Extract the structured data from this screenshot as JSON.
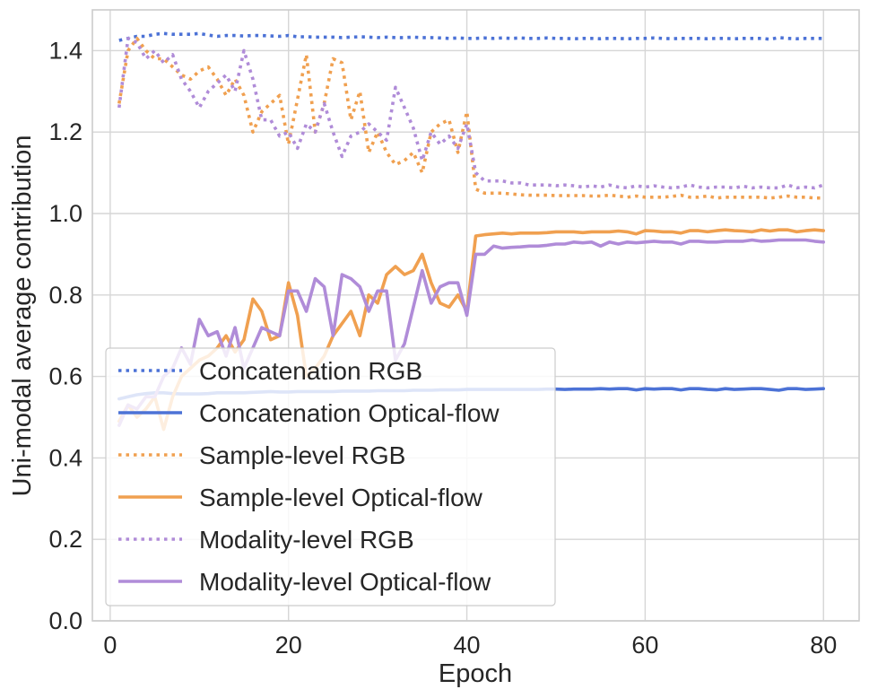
{
  "chart_data": {
    "type": "line",
    "title": "",
    "xlabel": "Epoch",
    "ylabel": "Uni-modal average contribution",
    "xlim": [
      -2,
      84
    ],
    "ylim": [
      0.0,
      1.5
    ],
    "xticks": [
      0,
      20,
      40,
      60,
      80
    ],
    "yticks": [
      0.0,
      0.2,
      0.4,
      0.6,
      0.8,
      1.0,
      1.2,
      1.4
    ],
    "xtick_labels": [
      "0",
      "20",
      "40",
      "60",
      "80"
    ],
    "ytick_labels": [
      "0.0",
      "0.2",
      "0.4",
      "0.6",
      "0.8",
      "1.0",
      "1.2",
      "1.4"
    ],
    "grid": true,
    "legend_position": "lower-left",
    "x": [
      1,
      2,
      3,
      4,
      5,
      6,
      7,
      8,
      9,
      10,
      11,
      12,
      13,
      14,
      15,
      16,
      17,
      18,
      19,
      20,
      21,
      22,
      23,
      24,
      25,
      26,
      27,
      28,
      29,
      30,
      31,
      32,
      33,
      34,
      35,
      36,
      37,
      38,
      39,
      40,
      41,
      42,
      43,
      44,
      45,
      46,
      47,
      48,
      49,
      50,
      51,
      52,
      53,
      54,
      55,
      56,
      57,
      58,
      59,
      60,
      61,
      62,
      63,
      64,
      65,
      66,
      67,
      68,
      69,
      70,
      71,
      72,
      73,
      74,
      75,
      76,
      77,
      78,
      79,
      80
    ],
    "series": [
      {
        "name": "Concatenation RGB",
        "color": "#4c72d6",
        "style": "dotted",
        "values": [
          1.425,
          1.43,
          1.435,
          1.435,
          1.44,
          1.442,
          1.44,
          1.44,
          1.44,
          1.442,
          1.438,
          1.435,
          1.437,
          1.437,
          1.436,
          1.437,
          1.437,
          1.436,
          1.435,
          1.437,
          1.434,
          1.434,
          1.433,
          1.433,
          1.433,
          1.432,
          1.433,
          1.434,
          1.433,
          1.432,
          1.433,
          1.432,
          1.432,
          1.433,
          1.432,
          1.432,
          1.431,
          1.43,
          1.431,
          1.43,
          1.43,
          1.431,
          1.43,
          1.431,
          1.43,
          1.431,
          1.43,
          1.43,
          1.431,
          1.43,
          1.43,
          1.429,
          1.43,
          1.43,
          1.429,
          1.43,
          1.43,
          1.429,
          1.43,
          1.43,
          1.431,
          1.43,
          1.429,
          1.43,
          1.43,
          1.43,
          1.429,
          1.43,
          1.43,
          1.429,
          1.43,
          1.43,
          1.43,
          1.428,
          1.432,
          1.43,
          1.429,
          1.43,
          1.43,
          1.43
        ]
      },
      {
        "name": "Concatenation Optical-flow",
        "color": "#4c72d6",
        "style": "solid",
        "values": [
          0.545,
          0.55,
          0.555,
          0.558,
          0.56,
          0.56,
          0.558,
          0.557,
          0.557,
          0.557,
          0.558,
          0.56,
          0.56,
          0.56,
          0.56,
          0.561,
          0.562,
          0.563,
          0.562,
          0.562,
          0.563,
          0.563,
          0.563,
          0.563,
          0.563,
          0.564,
          0.564,
          0.564,
          0.564,
          0.565,
          0.565,
          0.565,
          0.565,
          0.566,
          0.566,
          0.566,
          0.567,
          0.567,
          0.567,
          0.568,
          0.568,
          0.568,
          0.568,
          0.568,
          0.568,
          0.568,
          0.568,
          0.568,
          0.569,
          0.569,
          0.568,
          0.569,
          0.569,
          0.569,
          0.57,
          0.569,
          0.57,
          0.57,
          0.567,
          0.57,
          0.569,
          0.57,
          0.57,
          0.567,
          0.57,
          0.57,
          0.568,
          0.567,
          0.57,
          0.568,
          0.569,
          0.57,
          0.57,
          0.568,
          0.566,
          0.57,
          0.57,
          0.568,
          0.569,
          0.57
        ]
      },
      {
        "name": "Sample-level RGB",
        "color": "#f0a050",
        "style": "dotted",
        "values": [
          1.27,
          1.4,
          1.43,
          1.4,
          1.38,
          1.38,
          1.36,
          1.34,
          1.33,
          1.35,
          1.36,
          1.33,
          1.29,
          1.33,
          1.29,
          1.2,
          1.25,
          1.27,
          1.29,
          1.17,
          1.28,
          1.39,
          1.2,
          1.27,
          1.38,
          1.37,
          1.23,
          1.3,
          1.15,
          1.2,
          1.15,
          1.12,
          1.13,
          1.15,
          1.1,
          1.2,
          1.22,
          1.23,
          1.15,
          1.25,
          1.06,
          1.05,
          1.05,
          1.05,
          1.048,
          1.046,
          1.045,
          1.045,
          1.045,
          1.044,
          1.044,
          1.044,
          1.044,
          1.043,
          1.043,
          1.045,
          1.043,
          1.04,
          1.043,
          1.04,
          1.04,
          1.04,
          1.042,
          1.045,
          1.04,
          1.04,
          1.043,
          1.038,
          1.04,
          1.04,
          1.04,
          1.04,
          1.04,
          1.038,
          1.04,
          1.043,
          1.04,
          1.04,
          1.038,
          1.038
        ]
      },
      {
        "name": "Sample-level Optical-flow",
        "color": "#f0a050",
        "style": "solid",
        "values": [
          0.49,
          0.53,
          0.5,
          0.52,
          0.55,
          0.47,
          0.55,
          0.6,
          0.62,
          0.64,
          0.65,
          0.67,
          0.7,
          0.66,
          0.69,
          0.79,
          0.76,
          0.69,
          0.7,
          0.83,
          0.75,
          0.6,
          0.62,
          0.65,
          0.7,
          0.73,
          0.76,
          0.7,
          0.8,
          0.78,
          0.85,
          0.87,
          0.85,
          0.86,
          0.9,
          0.83,
          0.78,
          0.77,
          0.8,
          0.76,
          0.945,
          0.948,
          0.95,
          0.952,
          0.95,
          0.952,
          0.952,
          0.952,
          0.953,
          0.955,
          0.955,
          0.955,
          0.953,
          0.955,
          0.955,
          0.955,
          0.957,
          0.955,
          0.95,
          0.958,
          0.957,
          0.955,
          0.955,
          0.952,
          0.958,
          0.958,
          0.955,
          0.958,
          0.96,
          0.958,
          0.957,
          0.955,
          0.96,
          0.957,
          0.96,
          0.96,
          0.955,
          0.958,
          0.96,
          0.958
        ]
      },
      {
        "name": "Modality-level RGB",
        "color": "#b08cd8",
        "style": "dotted",
        "values": [
          1.26,
          1.43,
          1.42,
          1.38,
          1.4,
          1.37,
          1.39,
          1.33,
          1.3,
          1.26,
          1.3,
          1.32,
          1.34,
          1.3,
          1.4,
          1.33,
          1.23,
          1.23,
          1.19,
          1.2,
          1.16,
          1.22,
          1.2,
          1.27,
          1.2,
          1.14,
          1.19,
          1.2,
          1.22,
          1.2,
          1.18,
          1.31,
          1.26,
          1.21,
          1.13,
          1.2,
          1.17,
          1.19,
          1.16,
          1.22,
          1.1,
          1.08,
          1.08,
          1.08,
          1.075,
          1.075,
          1.07,
          1.07,
          1.07,
          1.068,
          1.07,
          1.068,
          1.065,
          1.068,
          1.065,
          1.07,
          1.065,
          1.063,
          1.068,
          1.065,
          1.068,
          1.065,
          1.063,
          1.065,
          1.07,
          1.065,
          1.063,
          1.065,
          1.065,
          1.063,
          1.067,
          1.063,
          1.065,
          1.063,
          1.063,
          1.07,
          1.063,
          1.065,
          1.063,
          1.07
        ]
      },
      {
        "name": "Modality-level Optical-flow",
        "color": "#b08cd8",
        "style": "solid",
        "values": [
          0.48,
          0.53,
          0.52,
          0.55,
          0.55,
          0.6,
          0.62,
          0.67,
          0.63,
          0.74,
          0.7,
          0.71,
          0.65,
          0.72,
          0.62,
          0.67,
          0.72,
          0.71,
          0.7,
          0.81,
          0.81,
          0.76,
          0.84,
          0.82,
          0.7,
          0.85,
          0.84,
          0.82,
          0.76,
          0.81,
          0.81,
          0.64,
          0.68,
          0.77,
          0.86,
          0.78,
          0.82,
          0.83,
          0.83,
          0.75,
          0.9,
          0.9,
          0.92,
          0.915,
          0.917,
          0.918,
          0.92,
          0.92,
          0.922,
          0.925,
          0.925,
          0.93,
          0.928,
          0.93,
          0.92,
          0.93,
          0.925,
          0.93,
          0.928,
          0.93,
          0.932,
          0.93,
          0.93,
          0.925,
          0.932,
          0.932,
          0.93,
          0.93,
          0.932,
          0.932,
          0.932,
          0.935,
          0.932,
          0.933,
          0.935,
          0.935,
          0.935,
          0.935,
          0.932,
          0.93
        ]
      }
    ]
  }
}
